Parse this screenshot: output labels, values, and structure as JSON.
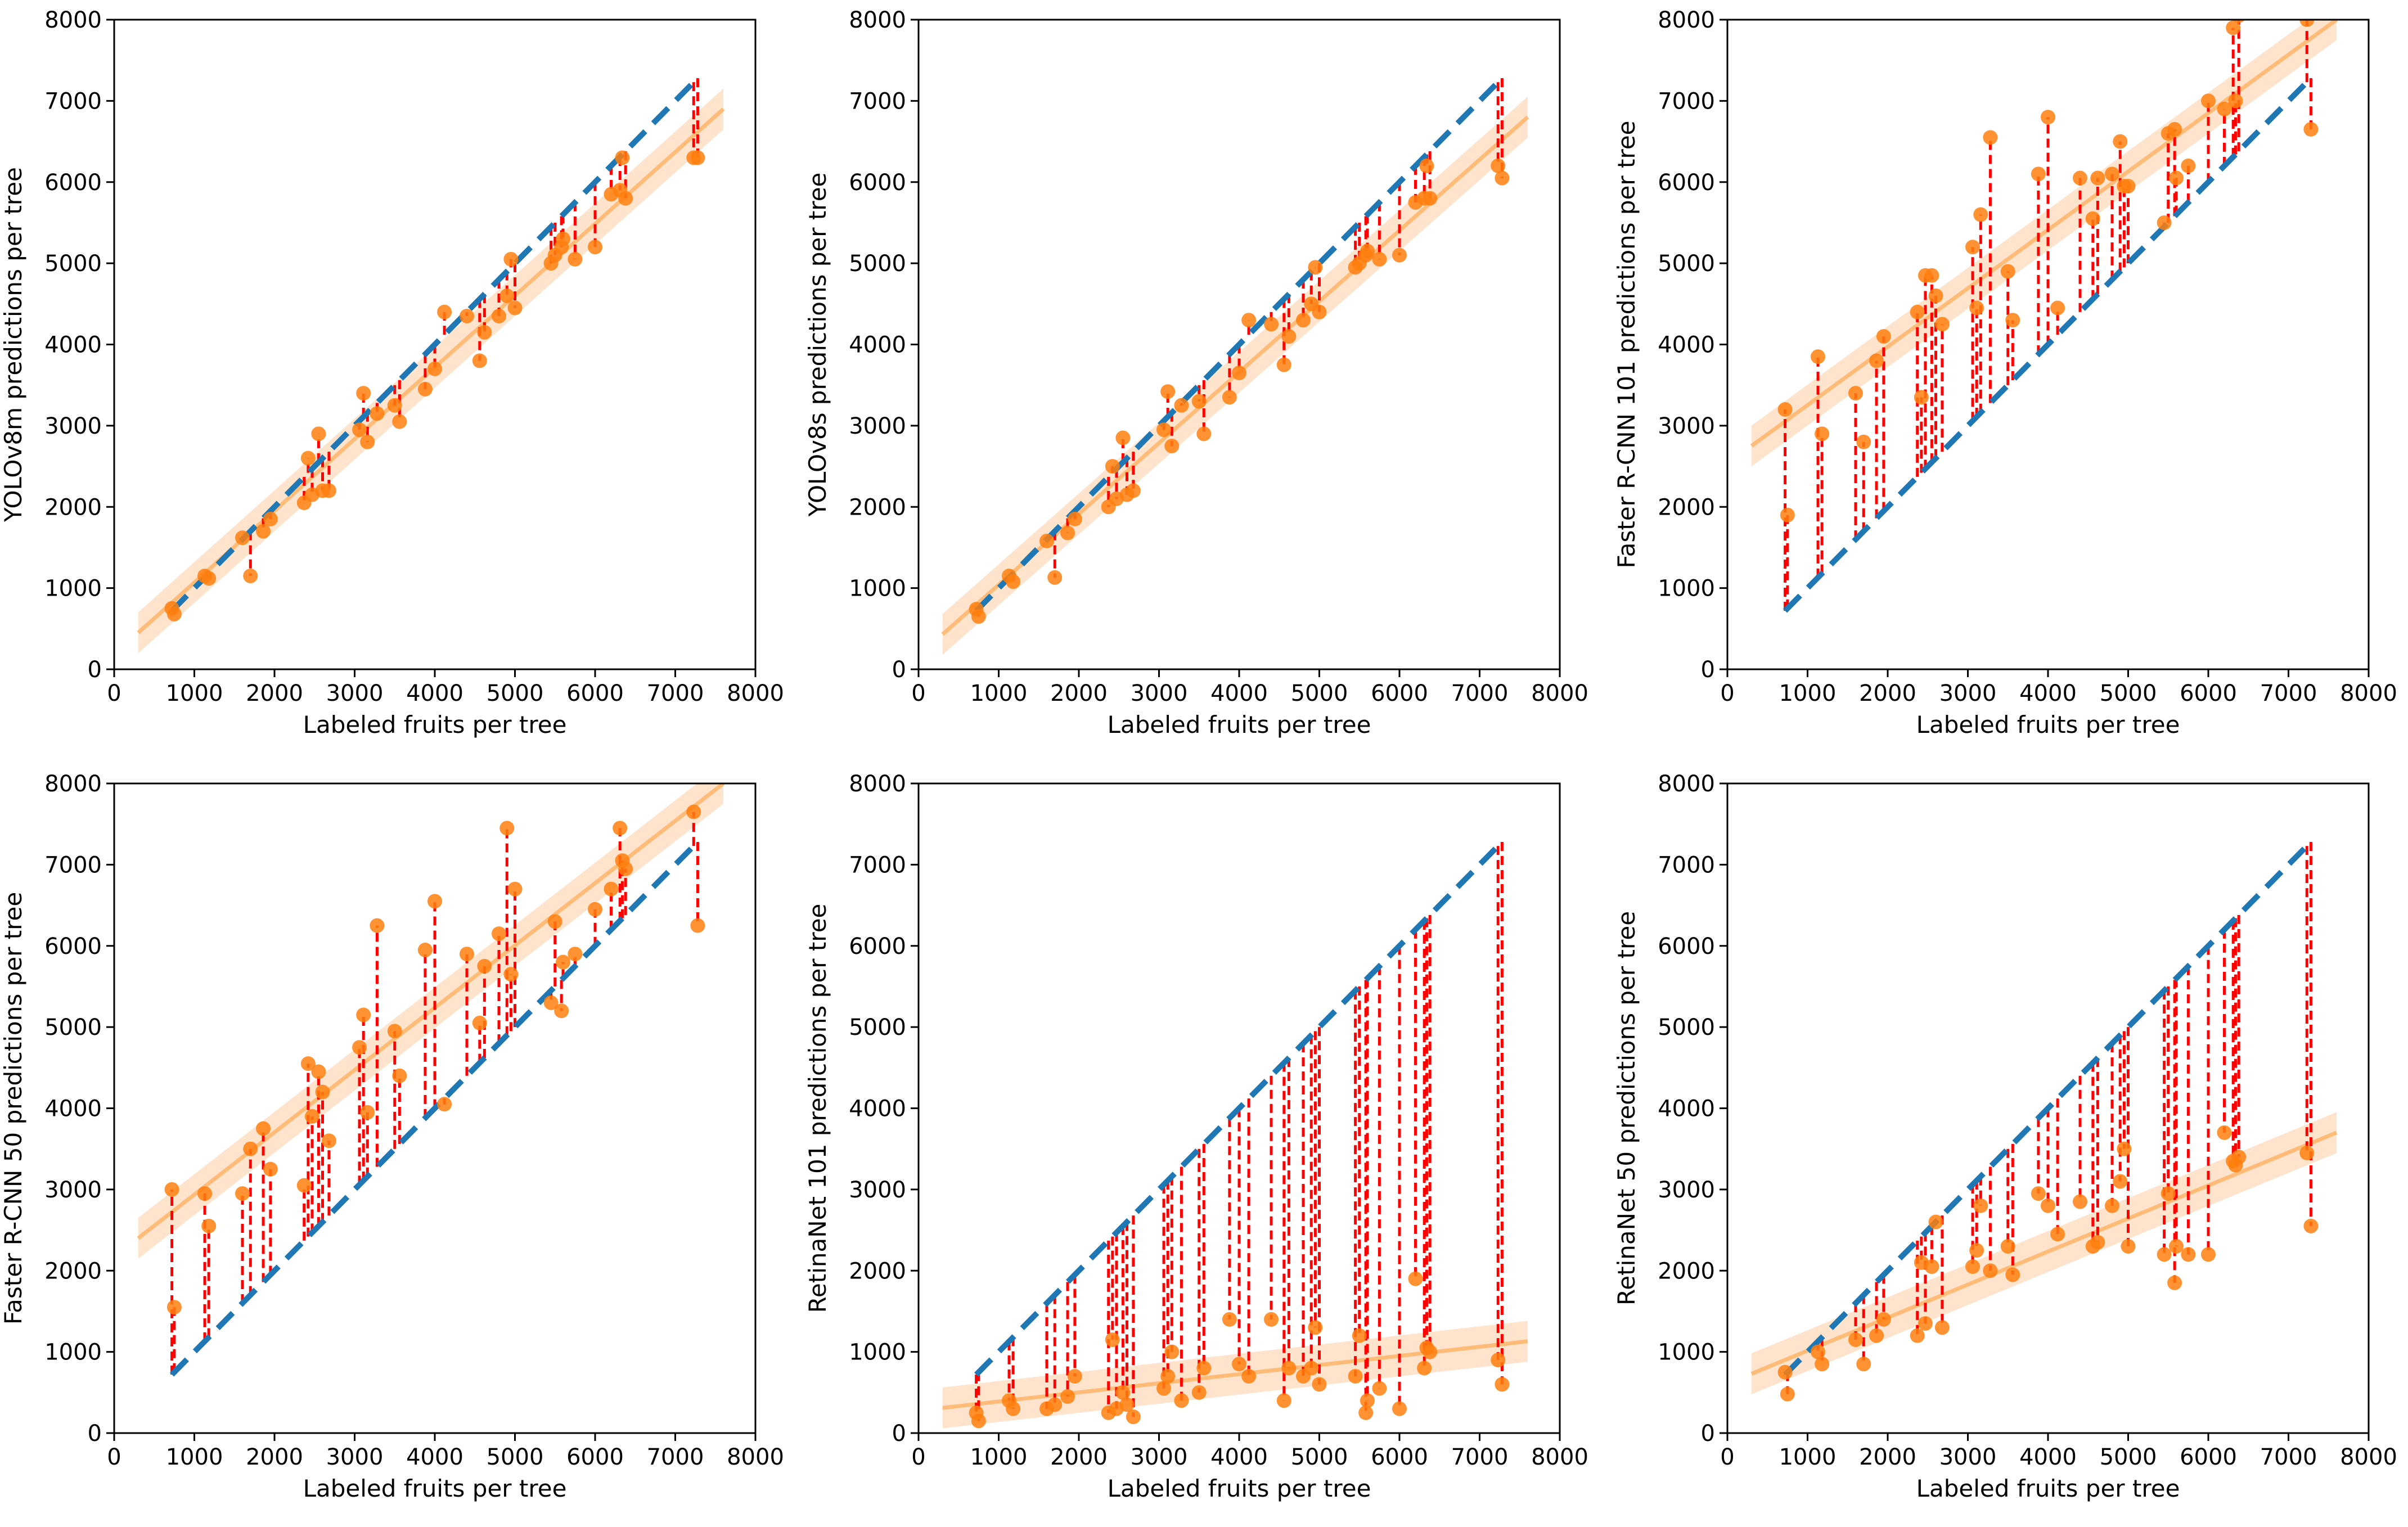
{
  "figure": {
    "xlabel": "Labeled fruits per tree",
    "xticks": [
      0,
      1000,
      2000,
      3000,
      4000,
      5000,
      6000,
      7000,
      8000
    ],
    "yticks": [
      0,
      1000,
      2000,
      3000,
      4000,
      5000,
      6000,
      7000,
      8000
    ],
    "colors": {
      "points": "#ff7f0e",
      "residual": "#ff0000",
      "identity": "#1f77b4",
      "fit": "#ffbb78",
      "band": "#ffd9b8"
    }
  },
  "labeled_fruits": [
    720,
    750,
    1130,
    1180,
    1700,
    1600,
    1860,
    1950,
    2370,
    2420,
    2470,
    2550,
    2600,
    2680,
    3060,
    3110,
    3160,
    3280,
    3500,
    3560,
    3880,
    4000,
    4120,
    4400,
    4560,
    4620,
    4800,
    4900,
    4950,
    5000,
    5450,
    5500,
    5580,
    5600,
    5750,
    6000,
    6200,
    6310,
    6340,
    6380,
    7230,
    7280
  ],
  "chart_data": [
    {
      "type": "scatter",
      "model": "YOLOv8m",
      "title": "",
      "xlabel": "Labeled fruits per tree",
      "ylabel": "YOLOv8m predictions per tree",
      "xlim": [
        0,
        8000
      ],
      "ylim": [
        0,
        8000
      ],
      "x": [
        720,
        750,
        1130,
        1180,
        1700,
        1600,
        1860,
        1950,
        2370,
        2420,
        2470,
        2550,
        2600,
        2680,
        3060,
        3110,
        3160,
        3280,
        3500,
        3560,
        3880,
        4000,
        4120,
        4400,
        4560,
        4620,
        4800,
        4900,
        4950,
        5000,
        5450,
        5500,
        5580,
        5600,
        5750,
        6000,
        6200,
        6310,
        6340,
        6380,
        7230,
        7280
      ],
      "y": [
        750,
        680,
        1150,
        1120,
        1150,
        1620,
        1700,
        1850,
        2050,
        2600,
        2150,
        2900,
        2200,
        2200,
        2950,
        3400,
        2800,
        3150,
        3250,
        3050,
        3450,
        3700,
        4400,
        4350,
        3800,
        4150,
        4350,
        4600,
        5050,
        4450,
        5000,
        5100,
        5200,
        5300,
        5050,
        5200,
        5850,
        5900,
        6300,
        5800,
        6300,
        6300
      ],
      "fit_line": {
        "x": [
          300,
          7600
        ],
        "y": [
          450,
          6900
        ]
      },
      "identity_line": {
        "x": [
          720,
          7280
        ],
        "y": [
          720,
          7280
        ]
      }
    },
    {
      "type": "scatter",
      "model": "YOLOv8s",
      "title": "",
      "xlabel": "Labeled fruits per tree",
      "ylabel": "YOLOv8s predictions per tree",
      "xlim": [
        0,
        8000
      ],
      "ylim": [
        0,
        8000
      ],
      "x": [
        720,
        750,
        1130,
        1180,
        1700,
        1600,
        1860,
        1950,
        2370,
        2420,
        2470,
        2550,
        2600,
        2680,
        3060,
        3110,
        3160,
        3280,
        3500,
        3560,
        3880,
        4000,
        4120,
        4400,
        4560,
        4620,
        4800,
        4900,
        4950,
        5000,
        5450,
        5500,
        5580,
        5600,
        5750,
        6000,
        6200,
        6310,
        6340,
        6380,
        7230,
        7280
      ],
      "y": [
        740,
        650,
        1150,
        1080,
        1130,
        1580,
        1680,
        1850,
        2000,
        2500,
        2100,
        2850,
        2150,
        2200,
        2950,
        3420,
        2750,
        3250,
        3300,
        2900,
        3350,
        3650,
        4300,
        4250,
        3750,
        4100,
        4300,
        4500,
        4950,
        4400,
        4950,
        5000,
        5100,
        5150,
        5050,
        5100,
        5750,
        5800,
        6200,
        5800,
        6200,
        6050
      ],
      "fit_line": {
        "x": [
          300,
          7600
        ],
        "y": [
          430,
          6800
        ]
      },
      "identity_line": {
        "x": [
          720,
          7280
        ],
        "y": [
          720,
          7280
        ]
      }
    },
    {
      "type": "scatter",
      "model": "Faster R-CNN 101",
      "title": "",
      "xlabel": "Labeled fruits per tree",
      "ylabel": "Faster R-CNN 101 predictions per tree",
      "xlim": [
        0,
        8000
      ],
      "ylim": [
        0,
        8000
      ],
      "x": [
        720,
        750,
        1130,
        1180,
        1700,
        1600,
        1860,
        1950,
        2370,
        2420,
        2470,
        2550,
        2600,
        2680,
        3060,
        3110,
        3160,
        3280,
        3500,
        3560,
        3880,
        4000,
        4120,
        4400,
        4560,
        4620,
        4800,
        4900,
        4950,
        5000,
        5450,
        5500,
        5580,
        5600,
        5750,
        6000,
        6200,
        6310,
        6340,
        6380,
        7230,
        7280
      ],
      "y": [
        3200,
        1900,
        3850,
        2900,
        2800,
        3400,
        3800,
        4100,
        4400,
        3350,
        4850,
        4850,
        4600,
        4250,
        5200,
        4450,
        5600,
        6550,
        4900,
        4300,
        6100,
        6800,
        4450,
        6050,
        5550,
        6050,
        6100,
        6500,
        5950,
        5950,
        5500,
        6600,
        6650,
        6050,
        6200,
        7000,
        6900,
        7900,
        7000,
        8050,
        8000,
        6650
      ],
      "fit_line": {
        "x": [
          300,
          7600
        ],
        "y": [
          2750,
          8000
        ]
      },
      "identity_line": {
        "x": [
          720,
          7280
        ],
        "y": [
          720,
          7280
        ]
      }
    },
    {
      "type": "scatter",
      "model": "Faster R-CNN 50",
      "title": "",
      "xlabel": "Labeled fruits per tree",
      "ylabel": "Faster R-CNN 50 predictions per tree",
      "xlim": [
        0,
        8000
      ],
      "ylim": [
        0,
        8000
      ],
      "x": [
        720,
        750,
        1130,
        1180,
        1700,
        1600,
        1860,
        1950,
        2370,
        2420,
        2470,
        2550,
        2600,
        2680,
        3060,
        3110,
        3160,
        3280,
        3500,
        3560,
        3880,
        4000,
        4120,
        4400,
        4560,
        4620,
        4800,
        4900,
        4950,
        5000,
        5450,
        5500,
        5580,
        5600,
        5750,
        6000,
        6200,
        6310,
        6340,
        6380,
        7230,
        7280
      ],
      "y": [
        3000,
        1550,
        2950,
        2550,
        3500,
        2950,
        3750,
        3250,
        3050,
        4550,
        3900,
        4450,
        4200,
        3600,
        4750,
        5150,
        3950,
        6250,
        4950,
        4400,
        5950,
        6550,
        4050,
        5900,
        5050,
        5750,
        6150,
        7450,
        5650,
        6700,
        5300,
        6300,
        5200,
        5800,
        5900,
        6450,
        6700,
        7450,
        7050,
        6950,
        7650,
        6250
      ],
      "fit_line": {
        "x": [
          300,
          7600
        ],
        "y": [
          2400,
          8000
        ]
      },
      "identity_line": {
        "x": [
          720,
          7280
        ],
        "y": [
          720,
          7280
        ]
      }
    },
    {
      "type": "scatter",
      "model": "RetinaNet 101",
      "title": "",
      "xlabel": "Labeled fruits per tree",
      "ylabel": "RetinaNet 101 predictions per tree",
      "xlim": [
        0,
        8000
      ],
      "ylim": [
        0,
        8000
      ],
      "x": [
        720,
        750,
        1130,
        1180,
        1700,
        1600,
        1860,
        1950,
        2370,
        2420,
        2470,
        2550,
        2600,
        2680,
        3060,
        3110,
        3160,
        3280,
        3500,
        3560,
        3880,
        4000,
        4120,
        4400,
        4560,
        4620,
        4800,
        4900,
        4950,
        5000,
        5450,
        5500,
        5580,
        5600,
        5750,
        6000,
        6200,
        6310,
        6340,
        6380,
        7230,
        7280
      ],
      "y": [
        250,
        150,
        400,
        300,
        350,
        300,
        450,
        700,
        250,
        1150,
        300,
        500,
        350,
        200,
        550,
        700,
        1000,
        400,
        500,
        800,
        1400,
        850,
        700,
        1400,
        400,
        800,
        700,
        800,
        1300,
        600,
        700,
        1200,
        250,
        400,
        550,
        300,
        1900,
        800,
        1050,
        1000,
        900,
        600
      ],
      "fit_line": {
        "x": [
          300,
          7600
        ],
        "y": [
          310,
          1130
        ]
      },
      "identity_line": {
        "x": [
          720,
          7280
        ],
        "y": [
          720,
          7280
        ]
      }
    },
    {
      "type": "scatter",
      "model": "RetinaNet 50",
      "title": "",
      "xlabel": "Labeled fruits per tree",
      "ylabel": "RetinaNet 50 predictions per tree",
      "xlim": [
        0,
        8000
      ],
      "ylim": [
        0,
        8000
      ],
      "x": [
        720,
        750,
        1130,
        1180,
        1700,
        1600,
        1860,
        1950,
        2370,
        2420,
        2470,
        2550,
        2600,
        2680,
        3060,
        3110,
        3160,
        3280,
        3500,
        3560,
        3880,
        4000,
        4120,
        4400,
        4560,
        4620,
        4800,
        4900,
        4950,
        5000,
        5450,
        5500,
        5580,
        5600,
        5750,
        6000,
        6200,
        6310,
        6340,
        6380,
        7230,
        7280
      ],
      "y": [
        750,
        480,
        1000,
        850,
        850,
        1150,
        1200,
        1400,
        1200,
        2100,
        1350,
        2050,
        2600,
        1300,
        2050,
        2250,
        2800,
        2000,
        2300,
        1950,
        2950,
        2800,
        2450,
        2850,
        2300,
        2350,
        2800,
        3100,
        3500,
        2300,
        2200,
        2950,
        1850,
        2300,
        2200,
        2200,
        3700,
        3350,
        3300,
        3400,
        3450,
        2550
      ],
      "fit_line": {
        "x": [
          300,
          7600
        ],
        "y": [
          730,
          3700
        ]
      },
      "identity_line": {
        "x": [
          720,
          7280
        ],
        "y": [
          720,
          7280
        ]
      }
    }
  ]
}
